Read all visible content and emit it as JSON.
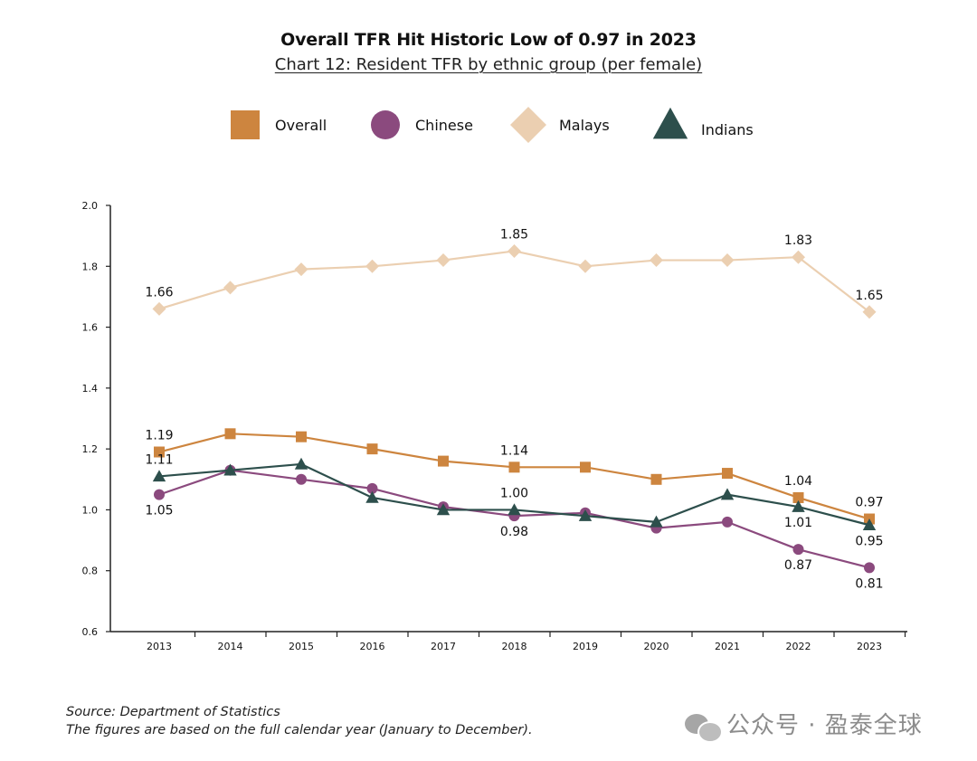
{
  "header": {
    "title": "Overall TFR Hit Historic Low of 0.97 in 2023",
    "subtitle": "Chart 12: Resident TFR by ethnic group (per female)"
  },
  "footer": {
    "source": "Source: Department of Statistics",
    "note": "The figures are based on the full calendar year (January to December)."
  },
  "watermark": {
    "text": "公众号 · 盈泰全球",
    "icon": "wechat-icon"
  },
  "chart_data": {
    "type": "line",
    "title": "Overall TFR Hit Historic Low of 0.97 in 2023",
    "subtitle": "Chart 12: Resident TFR by ethnic group (per female)",
    "xlabel": "",
    "ylabel": "",
    "categories": [
      "2013",
      "2014",
      "2015",
      "2016",
      "2017",
      "2018",
      "2019",
      "2020",
      "2021",
      "2022",
      "2023"
    ],
    "ylim": [
      0.6,
      2.0
    ],
    "yticks": [
      "0.6",
      "0.8",
      "1.0",
      "1.2",
      "1.4",
      "1.6",
      "1.8",
      "2.0"
    ],
    "grid": false,
    "legend_position": "top",
    "series": [
      {
        "name": "Overall",
        "color": "#cd853f",
        "marker": "square",
        "values": [
          1.19,
          1.25,
          1.24,
          1.2,
          1.16,
          1.14,
          1.14,
          1.1,
          1.12,
          1.04,
          0.97
        ]
      },
      {
        "name": "Chinese",
        "color": "#8b4a7e",
        "marker": "circle",
        "values": [
          1.05,
          1.13,
          1.1,
          1.07,
          1.01,
          0.98,
          0.99,
          0.94,
          0.96,
          0.87,
          0.81
        ]
      },
      {
        "name": "Malays",
        "color": "#ebcfb1",
        "marker": "diamond",
        "values": [
          1.66,
          1.73,
          1.79,
          1.8,
          1.82,
          1.85,
          1.8,
          1.82,
          1.82,
          1.83,
          1.65
        ]
      },
      {
        "name": "Indians",
        "color": "#2d4f4c",
        "marker": "triangle",
        "values": [
          1.11,
          1.13,
          1.15,
          1.04,
          1.0,
          1.0,
          0.98,
          0.96,
          1.05,
          1.01,
          0.95
        ]
      }
    ],
    "annotations": [
      {
        "series": "Malays",
        "index": 0,
        "text": "1.66",
        "pos": "above"
      },
      {
        "series": "Malays",
        "index": 5,
        "text": "1.85",
        "pos": "above"
      },
      {
        "series": "Malays",
        "index": 9,
        "text": "1.83",
        "pos": "above"
      },
      {
        "series": "Malays",
        "index": 10,
        "text": "1.65",
        "pos": "above"
      },
      {
        "series": "Overall",
        "index": 0,
        "text": "1.19",
        "pos": "above"
      },
      {
        "series": "Overall",
        "index": 5,
        "text": "1.14",
        "pos": "above"
      },
      {
        "series": "Overall",
        "index": 9,
        "text": "1.04",
        "pos": "above"
      },
      {
        "series": "Overall",
        "index": 10,
        "text": "0.97",
        "pos": "above"
      },
      {
        "series": "Indians",
        "index": 0,
        "text": "1.11",
        "pos": "above"
      },
      {
        "series": "Indians",
        "index": 5,
        "text": "1.00",
        "pos": "above"
      },
      {
        "series": "Indians",
        "index": 9,
        "text": "1.01",
        "pos": "below"
      },
      {
        "series": "Indians",
        "index": 10,
        "text": "0.95",
        "pos": "below"
      },
      {
        "series": "Chinese",
        "index": 0,
        "text": "1.05",
        "pos": "below"
      },
      {
        "series": "Chinese",
        "index": 5,
        "text": "0.98",
        "pos": "below"
      },
      {
        "series": "Chinese",
        "index": 9,
        "text": "0.87",
        "pos": "below"
      },
      {
        "series": "Chinese",
        "index": 10,
        "text": "0.81",
        "pos": "below"
      }
    ]
  }
}
